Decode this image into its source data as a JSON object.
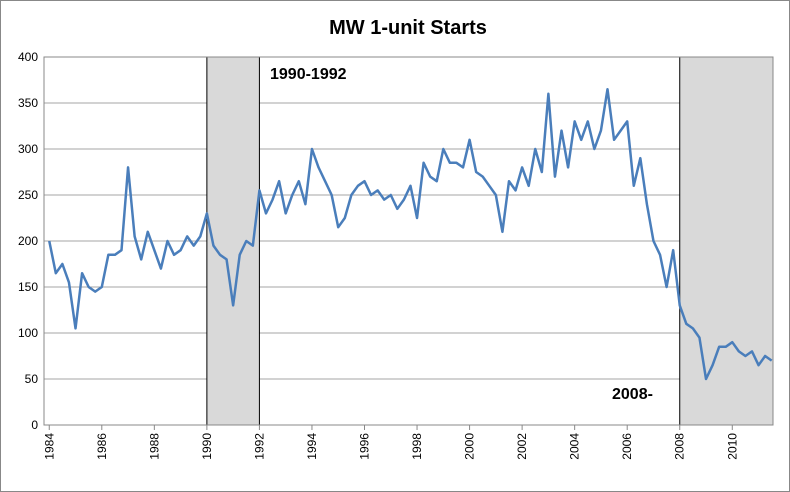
{
  "chart_data": {
    "type": "line",
    "title": "MW 1-unit Starts",
    "annotations": [
      "1990-1992",
      "2008-"
    ],
    "shaded": [
      [
        1990,
        1992
      ],
      [
        2008,
        2011.55
      ]
    ],
    "x": [
      1984,
      1984.25,
      1984.5,
      1984.75,
      1985,
      1985.25,
      1985.5,
      1985.75,
      1986,
      1986.25,
      1986.5,
      1986.75,
      1987,
      1987.25,
      1987.5,
      1987.75,
      1988,
      1988.25,
      1988.5,
      1988.75,
      1989,
      1989.25,
      1989.5,
      1989.75,
      1990,
      1990.25,
      1990.5,
      1990.75,
      1991,
      1991.25,
      1991.5,
      1991.75,
      1992,
      1992.25,
      1992.5,
      1992.75,
      1993,
      1993.25,
      1993.5,
      1993.75,
      1994,
      1994.25,
      1994.5,
      1994.75,
      1995,
      1995.25,
      1995.5,
      1995.75,
      1996,
      1996.25,
      1996.5,
      1996.75,
      1997,
      1997.25,
      1997.5,
      1997.75,
      1998,
      1998.25,
      1998.5,
      1998.75,
      1999,
      1999.25,
      1999.5,
      1999.75,
      2000,
      2000.25,
      2000.5,
      2000.75,
      2001,
      2001.25,
      2001.5,
      2001.75,
      2002,
      2002.25,
      2002.5,
      2002.75,
      2003,
      2003.25,
      2003.5,
      2003.75,
      2004,
      2004.25,
      2004.5,
      2004.75,
      2005,
      2005.25,
      2005.5,
      2005.75,
      2006,
      2006.25,
      2006.5,
      2006.75,
      2007,
      2007.25,
      2007.5,
      2007.75,
      2008,
      2008.25,
      2008.5,
      2008.75,
      2009,
      2009.25,
      2009.5,
      2009.75,
      2010,
      2010.25,
      2010.5,
      2010.75,
      2011,
      2011.25,
      2011.5
    ],
    "series": [
      {
        "color": "#4a7ebb",
        "values": [
          200,
          165,
          175,
          155,
          105,
          165,
          150,
          145,
          150,
          185,
          185,
          190,
          280,
          205,
          180,
          210,
          190,
          170,
          200,
          185,
          190,
          205,
          195,
          205,
          230,
          195,
          185,
          180,
          130,
          185,
          200,
          195,
          255,
          230,
          245,
          265,
          230,
          250,
          265,
          240,
          300,
          280,
          265,
          250,
          215,
          225,
          250,
          260,
          265,
          250,
          255,
          245,
          250,
          235,
          245,
          260,
          225,
          285,
          270,
          265,
          300,
          285,
          285,
          280,
          310,
          275,
          270,
          260,
          250,
          210,
          265,
          255,
          280,
          260,
          300,
          275,
          360,
          270,
          320,
          280,
          330,
          310,
          330,
          300,
          320,
          365,
          310,
          320,
          330,
          260,
          290,
          240,
          200,
          185,
          150,
          190,
          130,
          110,
          105,
          95,
          50,
          65,
          85,
          85,
          90,
          80,
          75,
          80,
          65,
          75,
          70
        ]
      }
    ],
    "xlim": [
      1983.8,
      2011.55
    ],
    "xticks": [
      1984,
      1986,
      1988,
      1990,
      1992,
      1994,
      1996,
      1998,
      2000,
      2002,
      2004,
      2006,
      2008,
      2010
    ],
    "ylim": [
      0,
      400
    ],
    "yticks": [
      0,
      50,
      100,
      150,
      200,
      250,
      300,
      350,
      400
    ],
    "grid": true
  }
}
